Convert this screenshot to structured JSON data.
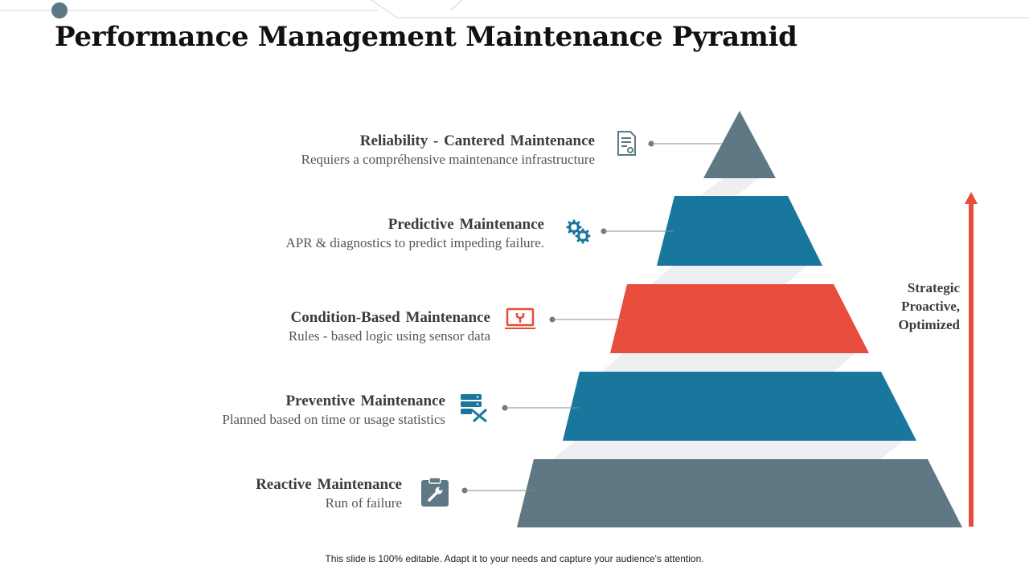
{
  "title": "Performance Management Maintenance Pyramid",
  "levels": [
    {
      "title": "Reliability - Cantered Maintenance",
      "description": "Requiers a compréhensive maintenance infrastructure",
      "icon": "document-gear-icon",
      "color": "#5e7884"
    },
    {
      "title": "Predictive Maintenance",
      "description": "APR & diagnostics to predict impeding failure.",
      "icon": "gears-icon",
      "color": "#19769c"
    },
    {
      "title": "Condition-Based Maintenance",
      "description": "Rules - based logic using sensor data",
      "icon": "laptop-tool-icon",
      "color": "#e74c3c"
    },
    {
      "title": "Preventive Maintenance",
      "description": "Planned based on time or usage statistics",
      "icon": "server-tools-icon",
      "color": "#19769c"
    },
    {
      "title": "Reactive Maintenance",
      "description": "Run of failure",
      "icon": "clipboard-wrench-icon",
      "color": "#5e7884"
    }
  ],
  "strategic": {
    "line1": "Strategic",
    "line2": "Proactive,",
    "line3": "Optimized",
    "arrow_color": "#e74c3c"
  },
  "footer": "This slide is 100% editable. Adapt it to your needs and capture your audience's attention."
}
